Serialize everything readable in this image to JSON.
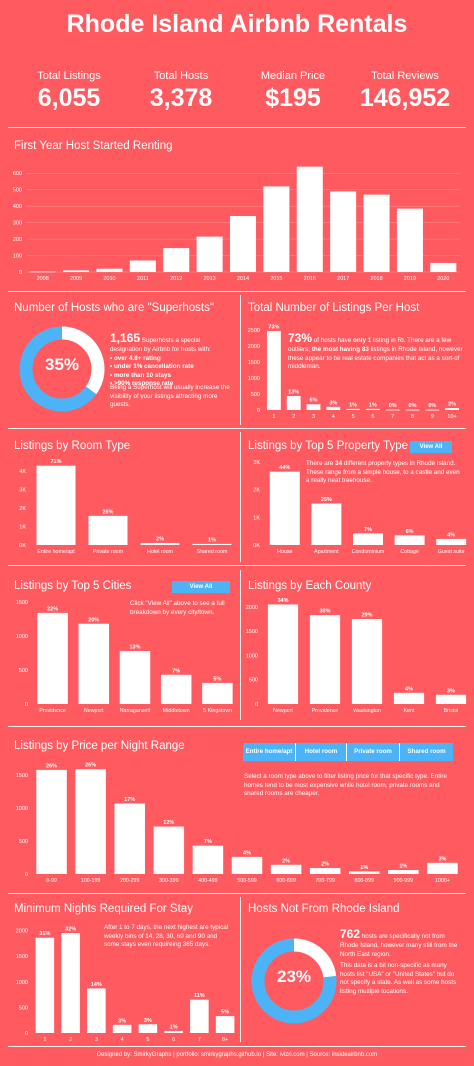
{
  "title": "Rhode Island Airbnb Rentals",
  "stats": [
    {
      "label": "Total Listings",
      "value": "6,055"
    },
    {
      "label": "Total Hosts",
      "value": "3,378"
    },
    {
      "label": "Median Price",
      "value": "$195"
    },
    {
      "label": "Total Reviews",
      "value": "146,952"
    }
  ],
  "sections": {
    "first_year": "First Year Host Started Renting",
    "superhosts": "Number of Hosts who are \"Superhosts\"",
    "listings_per_host": "Total Number of Listings Per Host",
    "room_type": "Listings by Room Type",
    "property_type": "Listings by Top 5 Property Type",
    "cities": "Listings by Top 5 Cities",
    "county": "Listings by Each County",
    "price": "Listings by Price per Night Range",
    "min_nights": "Minimum Nights Required For Stay",
    "not_ri": "Hosts Not From Rhode Island"
  },
  "buttons": {
    "view_all_property": "View All",
    "view_all_cities": "View All"
  },
  "price_tabs": [
    "Entire home/apt",
    "Hotel room",
    "Private room",
    "Shared room"
  ],
  "superhost": {
    "pct": "35%",
    "pct_value": 35,
    "count": "1,165",
    "intro": " Superhosts a special designation by Airbnb for hosts with:",
    "bullets": [
      "• over 4.8+ rating",
      "• under 1% cancellation rate",
      "• more than 10 stays",
      "• >90% response rate"
    ],
    "note": "Being a Superhost will usually increase the visibility  of your listings attracting more guests."
  },
  "per_host": {
    "big": "73%",
    "text_a": " of hosts have ",
    "bold_a": "only 1",
    "text_b": " listing in RI. There are a few outliers; ",
    "bold_b": "the most having 83",
    "text_c": " listings in Rhode Island, however these appear to be real estate companies that act as a sort-of middleman."
  },
  "property_note_a": "There are ",
  "property_note_bold": "34",
  "property_note_b": " different property types in Rhode Island. These range from a simple house, to a castle and even a really neat treehouse.",
  "cities_note": "Click \"View All\" above to see a full breakdown by every city/town.",
  "price_note": "Select a room type above to filter listing price for that specific type. Entire homes tend to be most expensive while hotel room, private rooms and shared rooms are cheaper.",
  "min_nights_note": "After 1 to 7 days, the next highest are typical weekly bins of 14, 28, 30, 60 and 90 and some stays even requireing 365 days.",
  "not_ri": {
    "pct": "23%",
    "pct_value": 23,
    "count": "762",
    "text": " hosts are specifically not from Rhode Island, however many still from the North East region.",
    "note": "This data is a bit non-specific as many hosts list \"USA\" or \"United States\" but do not specify a state. As well as some hosts listing multiple locations."
  },
  "footer": "Designed by: SmirkyGraphs     |     portfolio: smirkygraphs.github.io     |     Site: ivizri.com     |     Source: insideairbnb.com",
  "colors": {
    "background": "#ff5a5f",
    "accent": "#4db3f7",
    "bar": "#ffffff"
  },
  "chart_data": [
    {
      "id": "first_year",
      "type": "bar",
      "categories": [
        "2008",
        "2009",
        "2010",
        "2011",
        "2012",
        "2013",
        "2014",
        "2015",
        "2016",
        "2017",
        "2018",
        "2019",
        "2020"
      ],
      "values": [
        3,
        10,
        20,
        70,
        145,
        215,
        340,
        520,
        640,
        490,
        470,
        385,
        55
      ],
      "yticks": [
        "0",
        "100",
        "200",
        "300",
        "400",
        "500",
        "600"
      ],
      "ylim": [
        0,
        650
      ]
    },
    {
      "id": "per_host",
      "type": "bar",
      "categories": [
        "1",
        "2",
        "3",
        "4",
        "5",
        "6",
        "7",
        "8",
        "9",
        "10+"
      ],
      "values": [
        2470,
        440,
        180,
        100,
        35,
        35,
        12,
        10,
        10,
        60
      ],
      "labels": [
        "73%",
        "13%",
        "6%",
        "3%",
        "1%",
        "1%",
        "0%",
        "0%",
        "0%",
        "2%"
      ],
      "yticks": [
        "0",
        "500",
        "1000",
        "1500",
        "2000",
        "2500"
      ],
      "ylim": [
        0,
        2500
      ]
    },
    {
      "id": "room_type",
      "type": "bar",
      "categories": [
        "Entire home/apt",
        "Private room",
        "Hotel room",
        "Shared room"
      ],
      "values": [
        4300,
        1580,
        110,
        60
      ],
      "labels": [
        "71%",
        "26%",
        "2%",
        "1%"
      ],
      "yticks": [
        "0K",
        "1K",
        "2K",
        "3K",
        "4K"
      ],
      "ylim": [
        0,
        4500
      ]
    },
    {
      "id": "property_type",
      "type": "bar",
      "categories": [
        "House",
        "Apartment",
        "Condominium",
        "Cottage",
        "Guest suite"
      ],
      "values": [
        2650,
        1500,
        420,
        350,
        220
      ],
      "labels": [
        "44%",
        "25%",
        "7%",
        "6%",
        "4%"
      ],
      "yticks": [
        "0K",
        "1K",
        "2K",
        "3K"
      ],
      "ylim": [
        0,
        3000
      ]
    },
    {
      "id": "cities",
      "type": "bar",
      "categories": [
        "Providence",
        "Newport",
        "Narragansett",
        "Middletown",
        "S Kingstown"
      ],
      "values": [
        1340,
        1180,
        780,
        430,
        310
      ],
      "labels": [
        "22%",
        "20%",
        "13%",
        "7%",
        "5%"
      ],
      "yticks": [
        "0",
        "500",
        "1000",
        "1500"
      ],
      "ylim": [
        0,
        1500
      ]
    },
    {
      "id": "county",
      "type": "bar",
      "categories": [
        "Newport",
        "Providence",
        "Washington",
        "Kent",
        "Bristol"
      ],
      "values": [
        2050,
        1830,
        1750,
        230,
        190
      ],
      "labels": [
        "34%",
        "30%",
        "29%",
        "4%",
        "3%"
      ],
      "yticks": [
        "0",
        "500",
        "1000",
        "1500",
        "2000"
      ],
      "ylim": [
        0,
        2100
      ]
    },
    {
      "id": "price",
      "type": "bar",
      "categories": [
        "0-99",
        "100-199",
        "200-299",
        "300-399",
        "400-499",
        "500-599",
        "600-699",
        "700-799",
        "800-899",
        "900-999",
        "1000+"
      ],
      "values": [
        1580,
        1590,
        1070,
        720,
        430,
        260,
        140,
        90,
        40,
        60,
        170
      ],
      "labels": [
        "26%",
        "26%",
        "17%",
        "12%",
        "7%",
        "4%",
        "2%",
        "2%",
        "1%",
        "1%",
        "3%"
      ],
      "yticks": [
        "0",
        "500",
        "1000",
        "1500"
      ],
      "ylim": [
        0,
        1700
      ]
    },
    {
      "id": "min_nights",
      "type": "bar",
      "categories": [
        "1",
        "2",
        "3",
        "4",
        "5",
        "6",
        "7",
        "8+"
      ],
      "values": [
        1860,
        1950,
        870,
        160,
        170,
        40,
        650,
        330
      ],
      "labels": [
        "31%",
        "32%",
        "14%",
        "3%",
        "3%",
        "1%",
        "11%",
        "5%"
      ],
      "yticks": [
        "0",
        "500",
        "1000",
        "1500",
        "2000"
      ],
      "ylim": [
        0,
        2050
      ]
    },
    {
      "id": "superhost_donut",
      "type": "pie",
      "categories": [
        "Superhosts",
        "Other"
      ],
      "values": [
        35,
        65
      ]
    },
    {
      "id": "not_ri_donut",
      "type": "pie",
      "categories": [
        "Not from RI",
        "Other"
      ],
      "values": [
        23,
        77
      ]
    }
  ]
}
